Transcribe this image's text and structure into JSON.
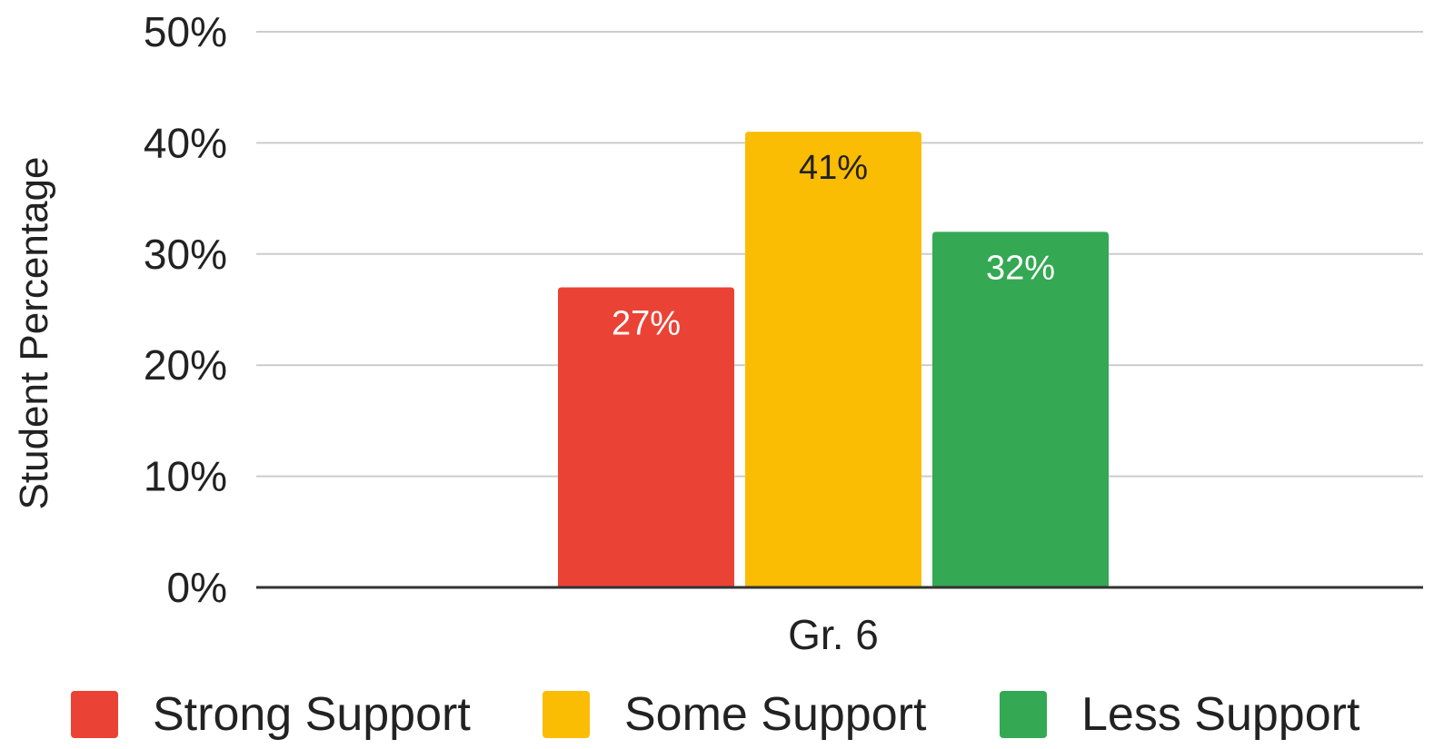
{
  "chart_data": {
    "type": "bar",
    "title": "",
    "xlabel": "",
    "ylabel": "Student  Percentage",
    "categories": [
      "Gr. 6"
    ],
    "ylim": [
      0,
      50
    ],
    "y_ticks": [
      "0%",
      "10%",
      "20%",
      "30%",
      "40%",
      "50%"
    ],
    "y_tick_values": [
      0,
      10,
      20,
      30,
      40,
      50
    ],
    "grid": true,
    "legend_position": "bottom",
    "series": [
      {
        "name": "Strong Support",
        "values": [
          27
        ],
        "data_labels": [
          "27%"
        ],
        "color": "#ea4335",
        "label_color": "#ffffff"
      },
      {
        "name": "Some Support",
        "values": [
          41
        ],
        "data_labels": [
          "41%"
        ],
        "color": "#fbbc04",
        "label_color": "#222222"
      },
      {
        "name": "Less Support",
        "values": [
          32
        ],
        "data_labels": [
          "32%"
        ],
        "color": "#34a853",
        "label_color": "#ffffff"
      }
    ]
  }
}
